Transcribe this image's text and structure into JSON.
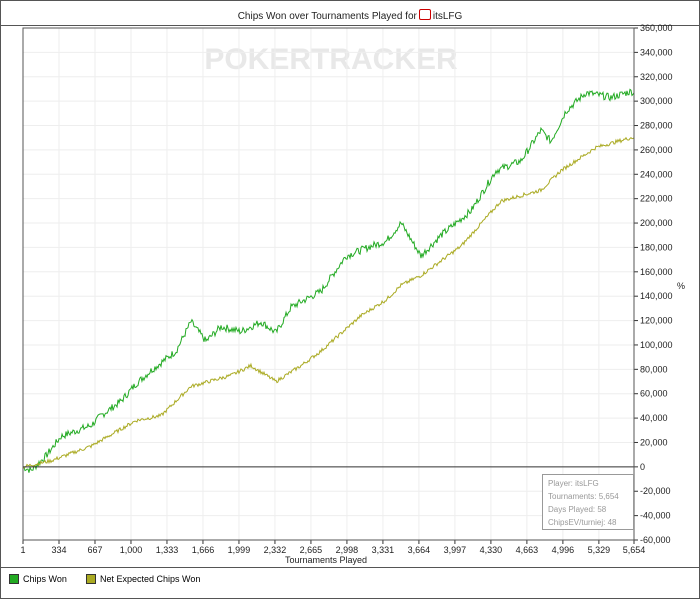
{
  "chart_data": {
    "type": "line",
    "title": "Chips Won over Tournaments Played for",
    "player_name": "itsLFG",
    "watermark": "POKERTRACKER",
    "xlabel": "Tournaments Played",
    "ylabel": "",
    "xlim": [
      1,
      5654
    ],
    "ylim": [
      -60000,
      360000
    ],
    "x_ticks": [
      "1",
      "334",
      "667",
      "1,000",
      "1,333",
      "1,666",
      "1,999",
      "2,332",
      "2,665",
      "2,998",
      "3,331",
      "3,664",
      "3,997",
      "4,330",
      "4,663",
      "4,996",
      "5,329",
      "5,654"
    ],
    "x_tick_values": [
      1,
      334,
      667,
      1000,
      1333,
      1666,
      1999,
      2332,
      2665,
      2998,
      3331,
      3664,
      3997,
      4330,
      4663,
      4996,
      5329,
      5654
    ],
    "y_ticks": [
      "-60,000",
      "-40,000",
      "-20,000",
      "0",
      "20,000",
      "40,000",
      "60,000",
      "80,000",
      "100,000",
      "120,000",
      "140,000",
      "160,000",
      "180,000",
      "200,000",
      "220,000",
      "240,000",
      "260,000",
      "280,000",
      "300,000",
      "320,000",
      "340,000",
      "360,000"
    ],
    "y_tick_values": [
      -60000,
      -40000,
      -20000,
      0,
      20000,
      40000,
      60000,
      80000,
      100000,
      120000,
      140000,
      160000,
      180000,
      200000,
      220000,
      240000,
      260000,
      280000,
      300000,
      320000,
      340000,
      360000
    ],
    "grid": true,
    "legend_position": "bottom-left",
    "series": [
      {
        "name": "Chips Won",
        "color": "#22aa22",
        "points": [
          [
            1,
            0
          ],
          [
            75,
            -3000
          ],
          [
            214,
            9000
          ],
          [
            353,
            25000
          ],
          [
            630,
            34000
          ],
          [
            723,
            42000
          ],
          [
            908,
            54000
          ],
          [
            1046,
            68000
          ],
          [
            1185,
            79000
          ],
          [
            1417,
            95000
          ],
          [
            1555,
            119000
          ],
          [
            1694,
            103000
          ],
          [
            1833,
            115000
          ],
          [
            2018,
            111000
          ],
          [
            2203,
            119000
          ],
          [
            2342,
            110000
          ],
          [
            2481,
            131000
          ],
          [
            2758,
            144000
          ],
          [
            2990,
            173000
          ],
          [
            3221,
            181000
          ],
          [
            3360,
            185000
          ],
          [
            3499,
            200000
          ],
          [
            3683,
            173000
          ],
          [
            3868,
            190000
          ],
          [
            4146,
            210000
          ],
          [
            4377,
            243000
          ],
          [
            4608,
            251000
          ],
          [
            4793,
            276000
          ],
          [
            4886,
            267000
          ],
          [
            5025,
            292000
          ],
          [
            5210,
            307000
          ],
          [
            5441,
            303000
          ],
          [
            5626,
            308000
          ],
          [
            5654,
            307000
          ]
        ]
      },
      {
        "name": "Net Expected Chips Won",
        "color": "#aaaa22",
        "points": [
          [
            1,
            0
          ],
          [
            260,
            5000
          ],
          [
            630,
            17000
          ],
          [
            1046,
            38000
          ],
          [
            1278,
            42000
          ],
          [
            1555,
            66000
          ],
          [
            1925,
            75000
          ],
          [
            2110,
            83000
          ],
          [
            2342,
            70000
          ],
          [
            2573,
            83000
          ],
          [
            2758,
            95000
          ],
          [
            3128,
            124000
          ],
          [
            3360,
            137000
          ],
          [
            3499,
            149000
          ],
          [
            3683,
            157000
          ],
          [
            4053,
            181000
          ],
          [
            4423,
            218000
          ],
          [
            4793,
            227000
          ],
          [
            4978,
            243000
          ],
          [
            5302,
            262000
          ],
          [
            5626,
            270000
          ],
          [
            5654,
            270000
          ]
        ]
      }
    ],
    "annotations": [
      "Player: itsLFG",
      "Tournaments: 5,654",
      "Days Played: 58",
      "ChipsEV/turniej: 48"
    ],
    "right_axis_symbol": "%"
  }
}
